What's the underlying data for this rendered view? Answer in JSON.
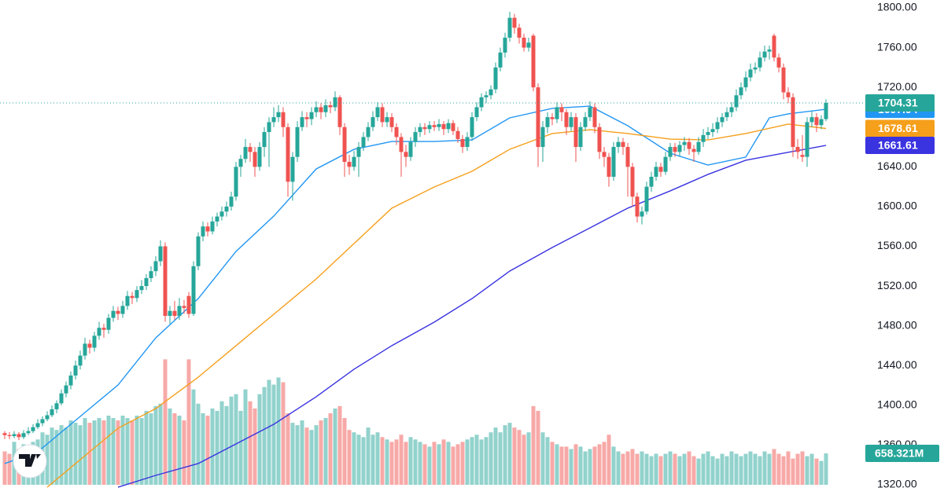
{
  "chart_data": {
    "type": "candlestick",
    "up_color": "#26a69a",
    "down_color": "#ef5350",
    "ylim": [
      1320,
      1800
    ],
    "yticks": [
      {
        "value": 1320,
        "label": "1320.00"
      },
      {
        "value": 1360,
        "label": "1360.00"
      },
      {
        "value": 1400,
        "label": "1400.00"
      },
      {
        "value": 1440,
        "label": "1440.00"
      },
      {
        "value": 1480,
        "label": "1480.00"
      },
      {
        "value": 1520,
        "label": "1520.00"
      },
      {
        "value": 1560,
        "label": "1560.00"
      },
      {
        "value": 1600,
        "label": "1600.00"
      },
      {
        "value": 1640,
        "label": "1640.00"
      },
      {
        "value": 1680,
        "label": "1680.00"
      },
      {
        "value": 1720,
        "label": "1720.00"
      },
      {
        "value": 1760,
        "label": "1760.00"
      },
      {
        "value": 1800,
        "label": "1800.00"
      }
    ],
    "candles": [
      [
        1372,
        1374,
        1366,
        1370
      ],
      [
        1370,
        1373,
        1366,
        1369
      ],
      [
        1369,
        1374,
        1367,
        1371
      ],
      [
        1371,
        1373,
        1365,
        1368
      ],
      [
        1368,
        1375,
        1366,
        1372
      ],
      [
        1372,
        1378,
        1370,
        1374
      ],
      [
        1374,
        1381,
        1372,
        1378
      ],
      [
        1378,
        1386,
        1376,
        1382
      ],
      [
        1382,
        1389,
        1379,
        1386
      ],
      [
        1386,
        1394,
        1384,
        1390
      ],
      [
        1390,
        1400,
        1388,
        1396
      ],
      [
        1396,
        1405,
        1392,
        1402
      ],
      [
        1402,
        1416,
        1400,
        1412
      ],
      [
        1412,
        1424,
        1408,
        1420
      ],
      [
        1420,
        1434,
        1416,
        1430
      ],
      [
        1430,
        1445,
        1426,
        1440
      ],
      [
        1440,
        1455,
        1436,
        1450
      ],
      [
        1450,
        1468,
        1446,
        1462
      ],
      [
        1462,
        1466,
        1452,
        1458
      ],
      [
        1458,
        1474,
        1454,
        1470
      ],
      [
        1470,
        1484,
        1466,
        1478
      ],
      [
        1478,
        1482,
        1468,
        1476
      ],
      [
        1476,
        1492,
        1472,
        1488
      ],
      [
        1488,
        1500,
        1484,
        1495
      ],
      [
        1495,
        1499,
        1486,
        1492
      ],
      [
        1492,
        1505,
        1488,
        1500
      ],
      [
        1500,
        1515,
        1496,
        1510
      ],
      [
        1510,
        1514,
        1502,
        1508
      ],
      [
        1508,
        1520,
        1504,
        1516
      ],
      [
        1516,
        1526,
        1512,
        1520
      ],
      [
        1520,
        1532,
        1516,
        1528
      ],
      [
        1528,
        1540,
        1524,
        1535
      ],
      [
        1535,
        1550,
        1530,
        1545
      ],
      [
        1545,
        1566,
        1540,
        1560
      ],
      [
        1560,
        1564,
        1484,
        1490
      ],
      [
        1490,
        1500,
        1482,
        1495
      ],
      [
        1495,
        1505,
        1486,
        1490
      ],
      [
        1490,
        1508,
        1486,
        1500
      ],
      [
        1500,
        1506,
        1492,
        1498
      ],
      [
        1510,
        1514,
        1488,
        1492
      ],
      [
        1492,
        1545,
        1490,
        1540
      ],
      [
        1540,
        1574,
        1536,
        1570
      ],
      [
        1570,
        1585,
        1565,
        1580
      ],
      [
        1580,
        1584,
        1570,
        1575
      ],
      [
        1575,
        1590,
        1572,
        1585
      ],
      [
        1585,
        1594,
        1580,
        1590
      ],
      [
        1590,
        1600,
        1586,
        1595
      ],
      [
        1595,
        1605,
        1590,
        1600
      ],
      [
        1600,
        1615,
        1596,
        1610
      ],
      [
        1610,
        1645,
        1606,
        1640
      ],
      [
        1640,
        1652,
        1630,
        1648
      ],
      [
        1648,
        1668,
        1644,
        1660
      ],
      [
        1660,
        1664,
        1645,
        1655
      ],
      [
        1655,
        1660,
        1630,
        1640
      ],
      [
        1640,
        1665,
        1636,
        1660
      ],
      [
        1660,
        1680,
        1650,
        1675
      ],
      [
        1675,
        1690,
        1640,
        1685
      ],
      [
        1685,
        1700,
        1680,
        1690
      ],
      [
        1690,
        1702,
        1685,
        1695
      ],
      [
        1695,
        1700,
        1670,
        1680
      ],
      [
        1680,
        1684,
        1610,
        1625
      ],
      [
        1625,
        1655,
        1606,
        1650
      ],
      [
        1650,
        1686,
        1645,
        1680
      ],
      [
        1680,
        1696,
        1676,
        1690
      ],
      [
        1690,
        1695,
        1680,
        1688
      ],
      [
        1688,
        1700,
        1682,
        1695
      ],
      [
        1695,
        1706,
        1690,
        1700
      ],
      [
        1700,
        1704,
        1688,
        1695
      ],
      [
        1695,
        1708,
        1690,
        1702
      ],
      [
        1702,
        1706,
        1694,
        1700
      ],
      [
        1700,
        1716,
        1696,
        1710
      ],
      [
        1710,
        1712,
        1672,
        1680
      ],
      [
        1680,
        1684,
        1630,
        1645
      ],
      [
        1645,
        1652,
        1632,
        1640
      ],
      [
        1640,
        1656,
        1636,
        1650
      ],
      [
        1650,
        1665,
        1630,
        1660
      ],
      [
        1660,
        1675,
        1656,
        1670
      ],
      [
        1670,
        1685,
        1666,
        1680
      ],
      [
        1680,
        1696,
        1676,
        1690
      ],
      [
        1690,
        1705,
        1686,
        1700
      ],
      [
        1700,
        1704,
        1680,
        1685
      ],
      [
        1685,
        1695,
        1680,
        1690
      ],
      [
        1690,
        1694,
        1675,
        1680
      ],
      [
        1680,
        1684,
        1662,
        1670
      ],
      [
        1670,
        1674,
        1630,
        1655
      ],
      [
        1655,
        1662,
        1640,
        1650
      ],
      [
        1650,
        1670,
        1646,
        1665
      ],
      [
        1665,
        1680,
        1660,
        1675
      ],
      [
        1675,
        1684,
        1670,
        1680
      ],
      [
        1680,
        1684,
        1672,
        1678
      ],
      [
        1678,
        1686,
        1674,
        1682
      ],
      [
        1682,
        1686,
        1676,
        1680
      ],
      [
        1680,
        1688,
        1676,
        1683
      ],
      [
        1683,
        1686,
        1672,
        1678
      ],
      [
        1678,
        1688,
        1674,
        1684
      ],
      [
        1684,
        1687,
        1672,
        1676
      ],
      [
        1676,
        1680,
        1664,
        1668
      ],
      [
        1668,
        1672,
        1654,
        1660
      ],
      [
        1660,
        1675,
        1656,
        1670
      ],
      [
        1670,
        1695,
        1666,
        1690
      ],
      [
        1690,
        1705,
        1686,
        1700
      ],
      [
        1700,
        1714,
        1696,
        1710
      ],
      [
        1710,
        1716,
        1704,
        1712
      ],
      [
        1712,
        1722,
        1708,
        1718
      ],
      [
        1718,
        1745,
        1714,
        1740
      ],
      [
        1740,
        1760,
        1736,
        1755
      ],
      [
        1755,
        1775,
        1750,
        1770
      ],
      [
        1770,
        1796,
        1766,
        1790
      ],
      [
        1790,
        1794,
        1774,
        1780
      ],
      [
        1780,
        1784,
        1764,
        1770
      ],
      [
        1770,
        1774,
        1756,
        1760
      ],
      [
        1760,
        1770,
        1756,
        1765
      ],
      [
        1772,
        1774,
        1716,
        1720
      ],
      [
        1720,
        1724,
        1640,
        1660
      ],
      [
        1660,
        1686,
        1645,
        1680
      ],
      [
        1680,
        1695,
        1674,
        1690
      ],
      [
        1690,
        1694,
        1682,
        1688
      ],
      [
        1688,
        1705,
        1684,
        1700
      ],
      [
        1700,
        1704,
        1686,
        1695
      ],
      [
        1695,
        1698,
        1672,
        1680
      ],
      [
        1680,
        1695,
        1676,
        1690
      ],
      [
        1690,
        1694,
        1645,
        1660
      ],
      [
        1660,
        1685,
        1656,
        1680
      ],
      [
        1680,
        1695,
        1676,
        1690
      ],
      [
        1690,
        1706,
        1686,
        1700
      ],
      [
        1700,
        1704,
        1674,
        1680
      ],
      [
        1680,
        1684,
        1648,
        1655
      ],
      [
        1655,
        1660,
        1640,
        1650
      ],
      [
        1650,
        1654,
        1620,
        1630
      ],
      [
        1630,
        1665,
        1626,
        1660
      ],
      [
        1660,
        1670,
        1654,
        1665
      ],
      [
        1665,
        1669,
        1652,
        1660
      ],
      [
        1660,
        1664,
        1610,
        1640
      ],
      [
        1640,
        1644,
        1600,
        1610
      ],
      [
        1610,
        1614,
        1584,
        1590
      ],
      [
        1590,
        1600,
        1582,
        1595
      ],
      [
        1595,
        1625,
        1592,
        1620
      ],
      [
        1620,
        1635,
        1615,
        1630
      ],
      [
        1630,
        1645,
        1626,
        1640
      ],
      [
        1640,
        1644,
        1630,
        1635
      ],
      [
        1635,
        1655,
        1632,
        1650
      ],
      [
        1650,
        1664,
        1646,
        1660
      ],
      [
        1660,
        1664,
        1650,
        1655
      ],
      [
        1655,
        1666,
        1650,
        1662
      ],
      [
        1662,
        1670,
        1656,
        1665
      ],
      [
        1665,
        1669,
        1652,
        1658
      ],
      [
        1658,
        1662,
        1645,
        1655
      ],
      [
        1655,
        1670,
        1652,
        1665
      ],
      [
        1665,
        1678,
        1660,
        1672
      ],
      [
        1672,
        1680,
        1668,
        1675
      ],
      [
        1675,
        1684,
        1670,
        1678
      ],
      [
        1678,
        1690,
        1674,
        1685
      ],
      [
        1685,
        1694,
        1680,
        1690
      ],
      [
        1690,
        1700,
        1686,
        1695
      ],
      [
        1695,
        1705,
        1690,
        1700
      ],
      [
        1700,
        1718,
        1696,
        1712
      ],
      [
        1712,
        1725,
        1708,
        1720
      ],
      [
        1720,
        1736,
        1716,
        1730
      ],
      [
        1730,
        1744,
        1726,
        1738
      ],
      [
        1738,
        1745,
        1734,
        1740
      ],
      [
        1740,
        1756,
        1736,
        1750
      ],
      [
        1750,
        1762,
        1746,
        1756
      ],
      [
        1756,
        1762,
        1748,
        1758
      ],
      [
        1772,
        1774,
        1746,
        1750
      ],
      [
        1750,
        1754,
        1735,
        1740
      ],
      [
        1740,
        1744,
        1708,
        1715
      ],
      [
        1715,
        1720,
        1704,
        1710
      ],
      [
        1710,
        1714,
        1650,
        1660
      ],
      [
        1660,
        1668,
        1648,
        1655
      ],
      [
        1652,
        1672,
        1645,
        1650
      ],
      [
        1650,
        1690,
        1640,
        1685
      ],
      [
        1685,
        1696,
        1680,
        1690
      ],
      [
        1690,
        1694,
        1675,
        1682
      ],
      [
        1682,
        1692,
        1678,
        1688
      ],
      [
        1688,
        1708,
        1686,
        1704.31
      ]
    ],
    "volume": {
      "ylim": [
        0,
        10000
      ],
      "values": [
        700,
        650,
        900,
        750,
        850,
        800,
        900,
        950,
        1100,
        1050,
        1200,
        1150,
        1250,
        1200,
        1350,
        1300,
        1250,
        1400,
        1300,
        1350,
        1400,
        1350,
        1450,
        1400,
        1350,
        1450,
        1400,
        1350,
        1450,
        1400,
        1550,
        1500,
        1650,
        1700,
        2630,
        1600,
        1500,
        1450,
        1350,
        2630,
        2000,
        1700,
        1500,
        1450,
        1600,
        1550,
        1750,
        1650,
        1850,
        1900,
        1550,
        2000,
        1750,
        1600,
        1900,
        2050,
        2200,
        2100,
        2250,
        2150,
        1500,
        1300,
        1250,
        1350,
        1200,
        1150,
        1250,
        1350,
        1400,
        1500,
        1600,
        1650,
        1400,
        1150,
        1100,
        1050,
        1000,
        1200,
        1050,
        1100,
        1000,
        950,
        900,
        950,
        1050,
        900,
        1000,
        950,
        900,
        850,
        800,
        900,
        850,
        950,
        900,
        800,
        850,
        900,
        950,
        1000,
        1050,
        950,
        1000,
        1100,
        1200,
        1100,
        1250,
        1300,
        1200,
        1150,
        1050,
        1100,
        1650,
        1550,
        1100,
        1000,
        900,
        850,
        800,
        800,
        750,
        850,
        800,
        700,
        750,
        800,
        850,
        900,
        1050,
        800,
        700,
        650,
        700,
        750,
        650,
        700,
        650,
        600,
        650,
        600,
        650,
        700,
        650,
        600,
        650,
        700,
        600,
        550,
        650,
        700,
        600,
        550,
        650,
        600,
        700,
        650,
        600,
        650,
        700,
        650,
        600,
        700,
        650,
        750,
        650,
        600,
        700,
        550,
        650,
        700,
        600,
        650,
        550,
        500,
        658.321
      ],
      "value_labels": {
        "174": "658.321M"
      }
    },
    "series": [
      {
        "color": "#2196f3",
        "x": [
          0,
          7,
          16,
          24,
          32,
          41,
          49,
          57,
          66,
          74,
          82,
          91,
          99,
          107,
          116,
          124,
          132,
          141,
          149,
          157,
          162,
          166,
          174
        ],
        "values": [
          1341.4,
          1353.2,
          1388.8,
          1420.4,
          1467.9,
          1507.4,
          1554.9,
          1590.4,
          1637.9,
          1657.6,
          1665.5,
          1665.5,
          1667.1,
          1689.3,
          1698.8,
          1701.1,
          1681.4,
          1653.7,
          1641.8,
          1649.8,
          1689.3,
          1693.3,
          1697.94
        ]
      },
      {
        "color": "#f59f1b",
        "x": [
          9,
          16,
          24,
          32,
          41,
          49,
          57,
          66,
          74,
          82,
          91,
          99,
          107,
          116,
          124,
          132,
          141,
          149,
          157,
          166,
          174
        ],
        "values": [
          1317.6,
          1345.3,
          1376.9,
          1396.7,
          1428.3,
          1460,
          1491.6,
          1527.2,
          1562.8,
          1598.4,
          1619.7,
          1635.5,
          1657.7,
          1673.5,
          1677.4,
          1673.5,
          1667.9,
          1667.1,
          1673.5,
          1683,
          1678.61
        ]
      },
      {
        "color": "#3a33e0",
        "x": [
          24,
          32,
          41,
          49,
          57,
          66,
          74,
          82,
          91,
          99,
          107,
          116,
          124,
          132,
          141,
          149,
          157,
          166,
          174
        ],
        "values": [
          1317.6,
          1329.5,
          1341.4,
          1361.1,
          1380.9,
          1408.6,
          1436.3,
          1460,
          1483.7,
          1507.4,
          1535.1,
          1558.8,
          1578.6,
          1598.4,
          1615.8,
          1632.4,
          1646.6,
          1654.6,
          1661.61
        ]
      }
    ]
  }
}
